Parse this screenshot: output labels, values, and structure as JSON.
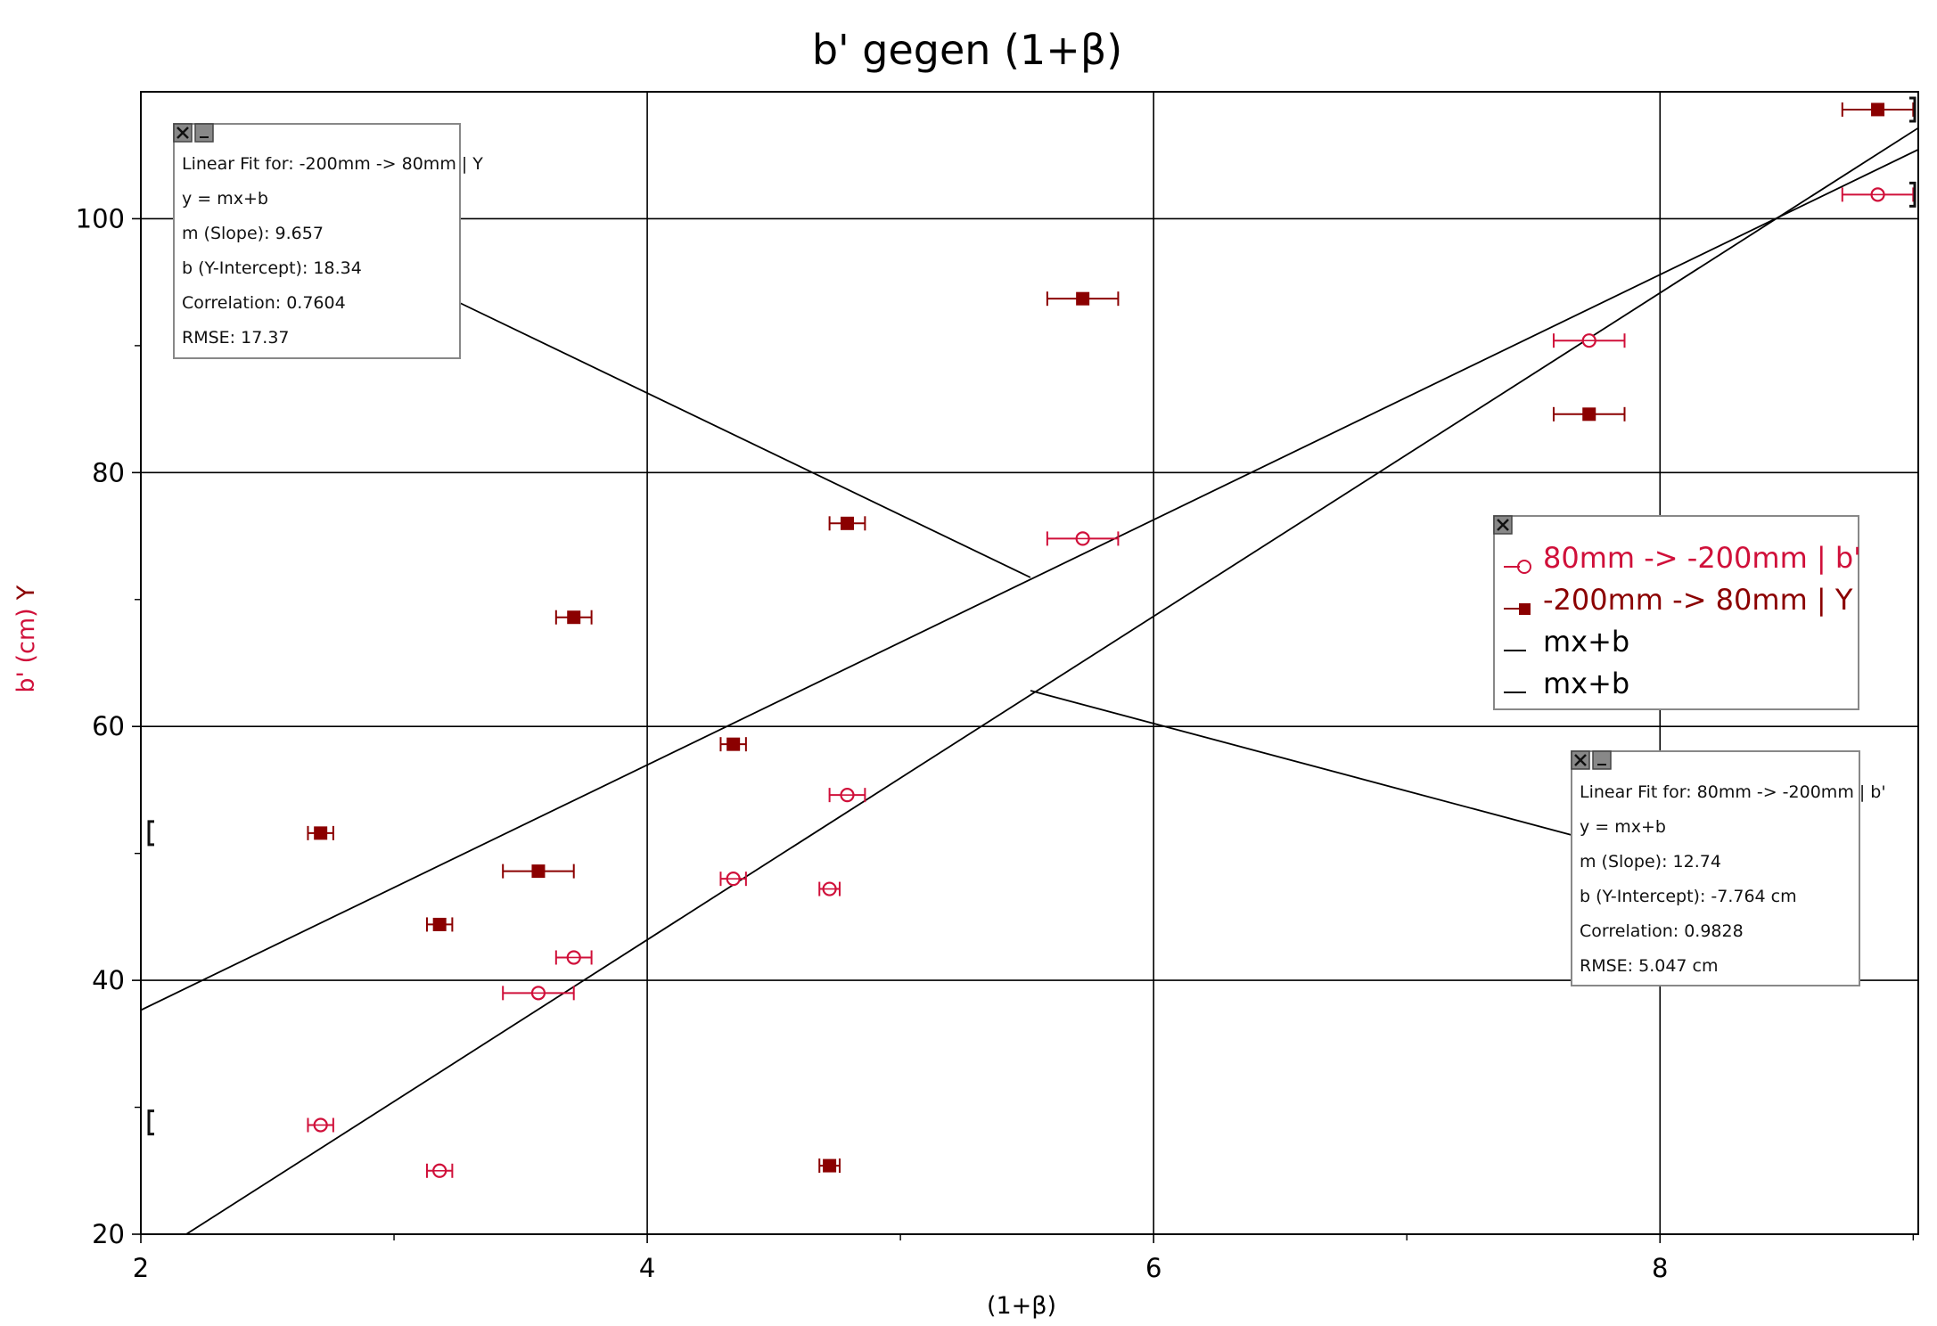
{
  "chart_data": {
    "type": "scatter",
    "title": "b' gegen (1+β)",
    "xlabel": "(1+β)",
    "ylabel_left": "b' (cm)",
    "ylabel_right": "Y",
    "xlim": [
      2,
      9.02
    ],
    "ylim": [
      20,
      110
    ],
    "xticks": [
      2,
      4,
      6,
      8
    ],
    "yticks": [
      20,
      40,
      60,
      80,
      100
    ],
    "grid": true,
    "legend_position": "center-right",
    "series": [
      {
        "name": "80mm -> -200mm | b'",
        "marker": "open-circle",
        "color": "#d0103a",
        "points": [
          {
            "x": 2.71,
            "y": 28.6,
            "xerr": 0.05
          },
          {
            "x": 3.18,
            "y": 25.0,
            "xerr": 0.05
          },
          {
            "x": 3.57,
            "y": 39.0,
            "xerr": 0.14
          },
          {
            "x": 3.71,
            "y": 41.8,
            "xerr": 0.07
          },
          {
            "x": 4.34,
            "y": 48.0,
            "xerr": 0.05
          },
          {
            "x": 4.72,
            "y": 47.2,
            "xerr": 0.04
          },
          {
            "x": 4.79,
            "y": 54.6,
            "xerr": 0.07
          },
          {
            "x": 5.72,
            "y": 74.8,
            "xerr": 0.14
          },
          {
            "x": 7.72,
            "y": 90.4,
            "xerr": 0.14
          },
          {
            "x": 8.86,
            "y": 101.9,
            "xerr": 0.14
          }
        ]
      },
      {
        "name": "-200mm -> 80mm | Y",
        "marker": "filled-square",
        "color": "#8b0000",
        "points": [
          {
            "x": 2.71,
            "y": 51.6,
            "xerr": 0.05
          },
          {
            "x": 3.18,
            "y": 44.4,
            "xerr": 0.05
          },
          {
            "x": 3.57,
            "y": 48.6,
            "xerr": 0.14
          },
          {
            "x": 3.71,
            "y": 68.6,
            "xerr": 0.07
          },
          {
            "x": 4.34,
            "y": 58.6,
            "xerr": 0.05
          },
          {
            "x": 4.72,
            "y": 25.4,
            "xerr": 0.04
          },
          {
            "x": 4.79,
            "y": 76.0,
            "xerr": 0.07
          },
          {
            "x": 5.72,
            "y": 93.7,
            "xerr": 0.14
          },
          {
            "x": 7.72,
            "y": 84.6,
            "xerr": 0.14
          },
          {
            "x": 8.86,
            "y": 108.6,
            "xerr": 0.14
          }
        ]
      }
    ],
    "fit_lines": [
      {
        "name": "mx+b",
        "slope": 12.74,
        "intercept": -7.764
      },
      {
        "name": "mx+b",
        "slope": 9.657,
        "intercept": 18.34
      }
    ]
  },
  "fit_box_y": {
    "title": "Linear Fit for: -200mm -> 80mm | Y",
    "equation": "y = mx+b",
    "slope": "m (Slope): 9.657",
    "intercept": "b (Y-Intercept): 18.34",
    "correlation": "Correlation: 0.7604",
    "rmse": "RMSE: 17.37"
  },
  "fit_box_b": {
    "title": "Linear Fit for: 80mm -> -200mm | b'",
    "equation": "y = mx+b",
    "slope": "m (Slope): 12.74",
    "intercept": "b (Y-Intercept): -7.764 cm",
    "correlation": "Correlation: 0.9828",
    "rmse": "RMSE: 5.047 cm"
  },
  "legend": {
    "items": [
      {
        "label": "80mm -> -200mm | b'",
        "color": "#d0103a",
        "marker": "open-circle"
      },
      {
        "label": "-200mm -> 80mm | Y",
        "color": "#8b0000",
        "marker": "filled-square"
      },
      {
        "label": "mx+b",
        "color": "#000000",
        "marker": "line"
      },
      {
        "label": "mx+b",
        "color": "#000000",
        "marker": "line"
      }
    ]
  },
  "colors": {
    "series_b": "#d0103a",
    "series_y": "#8b0000",
    "grid": "#000000",
    "box_border": "#888888"
  },
  "icons": {
    "close": "close-icon",
    "minimize": "minimize-icon"
  }
}
